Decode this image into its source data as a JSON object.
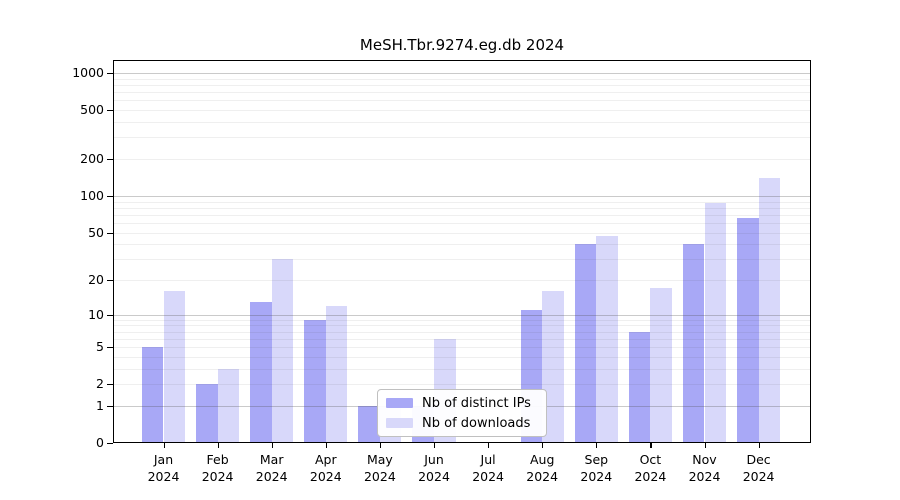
{
  "title": "MeSH.Tbr.9274.eg.db 2024",
  "chart_data": {
    "type": "bar",
    "title": "MeSH.Tbr.9274.eg.db 2024",
    "categories": [
      "Jan",
      "Feb",
      "Mar",
      "Apr",
      "May",
      "Jun",
      "Jul",
      "Aug",
      "Sep",
      "Oct",
      "Nov",
      "Dec"
    ],
    "category_year": "2024",
    "series": [
      {
        "name": "Nb of distinct IPs",
        "color": "#a8a8f6",
        "values": [
          5,
          2,
          13,
          9,
          1,
          1,
          0,
          11,
          40,
          7,
          40,
          66
        ]
      },
      {
        "name": "Nb of downloads",
        "color": "#d8d8fa",
        "values": [
          16,
          3,
          30,
          12,
          1,
          6,
          0,
          16,
          47,
          17,
          88,
          140
        ]
      }
    ],
    "yscale": "log10(value+1)",
    "y_ticks": [
      1000,
      500,
      200,
      100,
      50,
      20,
      10,
      5,
      2,
      1,
      0
    ],
    "major_gridline_values": [
      1,
      10,
      100,
      1000
    ],
    "ylim": [
      0,
      1280
    ],
    "grid": "on",
    "legend_position": "inside-bottom-center",
    "xlabel": "",
    "ylabel": ""
  },
  "colors": {
    "background": "#ffffff",
    "axis": "#000000",
    "grid_major": "rgba(80,80,80,0.30)",
    "grid_minor": "rgba(80,80,80,0.09)",
    "legend_border": "#c0c0c0"
  }
}
